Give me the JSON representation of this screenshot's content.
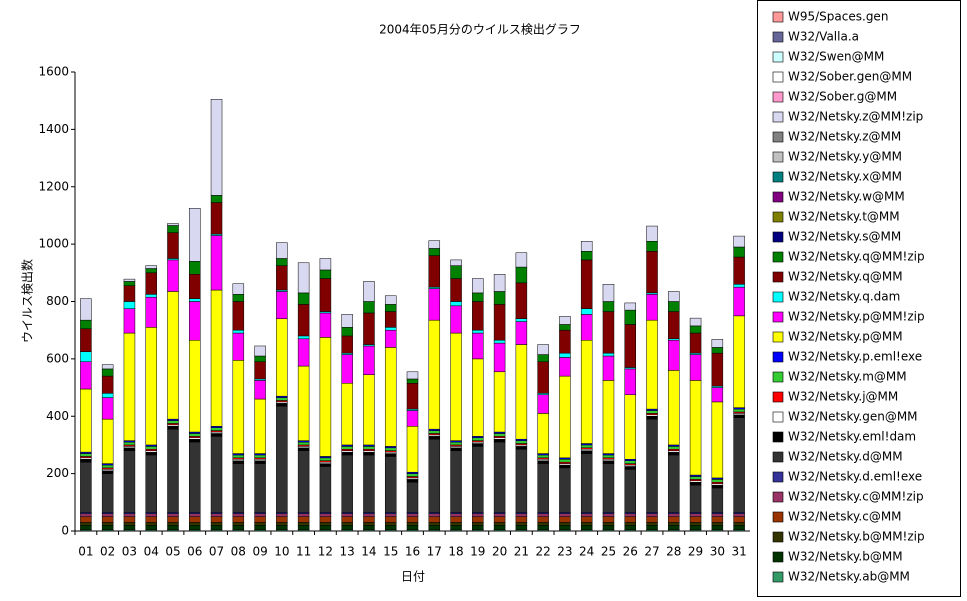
{
  "chart_data": {
    "type": "stacked_bar",
    "title": "2004年05月分のウイルス検出グラフ",
    "y_label": "ウイルス検出数",
    "x_label": "日付",
    "categories": [
      "01",
      "02",
      "03",
      "04",
      "05",
      "06",
      "07",
      "08",
      "09",
      "10",
      "11",
      "12",
      "13",
      "14",
      "15",
      "16",
      "17",
      "18",
      "19",
      "20",
      "21",
      "22",
      "23",
      "24",
      "25",
      "26",
      "27",
      "28",
      "29",
      "30",
      "31"
    ],
    "ylim": [
      0,
      1600
    ],
    "yticks": [
      0,
      200,
      400,
      600,
      800,
      1000,
      1200,
      1400,
      1600
    ],
    "series": [
      {
        "name": "W32/Netsky.ab@MM",
        "color": "#339966",
        "values": [
          5,
          5,
          5,
          5,
          5,
          5,
          5,
          5,
          5,
          5,
          5,
          5,
          5,
          5,
          5,
          5,
          5,
          5,
          5,
          5,
          5,
          5,
          5,
          5,
          5,
          5,
          5,
          5,
          5,
          5,
          5
        ]
      },
      {
        "name": "W32/Netsky.b@MM",
        "color": "#003300",
        "values": [
          15,
          15,
          15,
          15,
          15,
          15,
          15,
          15,
          15,
          15,
          15,
          15,
          15,
          15,
          15,
          15,
          15,
          15,
          15,
          15,
          15,
          15,
          15,
          15,
          15,
          15,
          15,
          15,
          15,
          15,
          15
        ]
      },
      {
        "name": "W32/Netsky.b@MM!zip",
        "color": "#333300",
        "values": [
          10,
          10,
          10,
          10,
          10,
          10,
          10,
          10,
          10,
          10,
          10,
          10,
          10,
          10,
          10,
          10,
          10,
          10,
          10,
          10,
          10,
          10,
          10,
          10,
          10,
          10,
          10,
          10,
          10,
          10,
          10
        ]
      },
      {
        "name": "W32/Netsky.c@MM",
        "color": "#993300",
        "values": [
          20,
          20,
          20,
          20,
          20,
          20,
          20,
          20,
          20,
          20,
          20,
          20,
          20,
          20,
          20,
          20,
          20,
          20,
          20,
          20,
          20,
          20,
          20,
          20,
          20,
          20,
          20,
          20,
          20,
          20,
          20
        ]
      },
      {
        "name": "W32/Netsky.c@MM!zip",
        "color": "#993366",
        "values": [
          10,
          10,
          10,
          10,
          10,
          10,
          10,
          10,
          10,
          10,
          10,
          10,
          10,
          10,
          10,
          10,
          10,
          10,
          10,
          10,
          10,
          10,
          10,
          10,
          10,
          10,
          10,
          10,
          10,
          10,
          10
        ]
      },
      {
        "name": "W32/Netsky.d.eml!exe",
        "color": "#333399",
        "values": [
          5,
          5,
          5,
          5,
          5,
          5,
          5,
          5,
          5,
          5,
          5,
          5,
          5,
          5,
          5,
          5,
          5,
          5,
          5,
          5,
          5,
          5,
          5,
          5,
          5,
          5,
          5,
          5,
          5,
          5,
          5
        ]
      },
      {
        "name": "W32/Netsky.d@MM",
        "color": "#333333",
        "values": [
          175,
          135,
          215,
          200,
          290,
          245,
          265,
          170,
          170,
          370,
          215,
          160,
          200,
          200,
          195,
          105,
          255,
          215,
          230,
          245,
          220,
          170,
          155,
          205,
          170,
          150,
          325,
          200,
          95,
          85,
          330
        ]
      },
      {
        "name": "W32/Netsky.eml!dam",
        "color": "#000000",
        "values": [
          10,
          10,
          10,
          10,
          10,
          10,
          10,
          10,
          10,
          10,
          10,
          10,
          10,
          10,
          10,
          10,
          10,
          10,
          10,
          10,
          10,
          10,
          10,
          10,
          10,
          10,
          10,
          10,
          10,
          10,
          10
        ]
      },
      {
        "name": "W32/Netsky.gen@MM",
        "color": "#ffffff",
        "values": [
          5,
          5,
          5,
          5,
          5,
          5,
          5,
          5,
          5,
          5,
          5,
          5,
          5,
          5,
          5,
          5,
          5,
          5,
          5,
          5,
          5,
          5,
          5,
          5,
          5,
          5,
          5,
          5,
          5,
          5,
          5
        ]
      },
      {
        "name": "W32/Netsky.j@MM",
        "color": "#ff0000",
        "values": [
          5,
          5,
          5,
          5,
          5,
          5,
          5,
          5,
          5,
          5,
          5,
          5,
          5,
          5,
          5,
          5,
          5,
          5,
          5,
          5,
          5,
          5,
          5,
          5,
          5,
          5,
          5,
          5,
          5,
          5,
          5
        ]
      },
      {
        "name": "W32/Netsky.m@MM",
        "color": "#33cc33",
        "values": [
          10,
          10,
          10,
          10,
          10,
          10,
          10,
          10,
          10,
          10,
          10,
          10,
          10,
          10,
          10,
          10,
          10,
          10,
          10,
          10,
          10,
          10,
          10,
          10,
          10,
          10,
          10,
          10,
          10,
          10,
          10
        ]
      },
      {
        "name": "W32/Netsky.p.eml!exe",
        "color": "#0000ff",
        "values": [
          5,
          5,
          5,
          5,
          5,
          5,
          5,
          5,
          5,
          5,
          5,
          5,
          5,
          5,
          5,
          5,
          5,
          5,
          5,
          5,
          5,
          5,
          5,
          5,
          5,
          5,
          5,
          5,
          5,
          5,
          5
        ]
      },
      {
        "name": "W32/Netsky.p@MM",
        "color": "#ffff00",
        "values": [
          220,
          155,
          375,
          410,
          445,
          320,
          475,
          325,
          190,
          270,
          260,
          415,
          215,
          245,
          345,
          160,
          380,
          375,
          270,
          210,
          330,
          140,
          285,
          360,
          255,
          225,
          310,
          260,
          330,
          265,
          320
        ]
      },
      {
        "name": "W32/Netsky.p@MM!zip",
        "color": "#ff00ff",
        "values": [
          95,
          75,
          85,
          105,
          110,
          135,
          190,
          95,
          65,
          95,
          95,
          85,
          100,
          100,
          60,
          55,
          110,
          95,
          90,
          100,
          80,
          65,
          65,
          90,
          85,
          90,
          90,
          105,
          90,
          50,
          100
        ]
      },
      {
        "name": "W32/Netsky.q.dam",
        "color": "#00ffff",
        "values": [
          35,
          15,
          25,
          10,
          5,
          10,
          5,
          10,
          5,
          5,
          10,
          5,
          5,
          5,
          10,
          5,
          5,
          15,
          10,
          10,
          10,
          5,
          15,
          20,
          10,
          5,
          5,
          5,
          5,
          5,
          10
        ]
      },
      {
        "name": "W32/Netsky.q@MM",
        "color": "#800000",
        "values": [
          80,
          60,
          55,
          75,
          90,
          85,
          110,
          100,
          60,
          85,
          110,
          115,
          60,
          110,
          55,
          90,
          110,
          80,
          100,
          125,
          125,
          110,
          80,
          170,
          145,
          150,
          145,
          95,
          70,
          115,
          95
        ]
      },
      {
        "name": "W32/Netsky.q@MM!zip",
        "color": "#008000",
        "values": [
          30,
          25,
          15,
          15,
          25,
          45,
          25,
          25,
          20,
          25,
          40,
          30,
          30,
          40,
          25,
          15,
          25,
          45,
          30,
          45,
          55,
          25,
          20,
          30,
          35,
          50,
          35,
          35,
          25,
          20,
          35
        ]
      },
      {
        "name": "W32/Netsky.s@MM",
        "color": "#000080",
        "values": [
          0,
          0,
          0,
          0,
          0,
          0,
          0,
          0,
          0,
          0,
          0,
          0,
          0,
          0,
          0,
          0,
          0,
          0,
          0,
          0,
          0,
          0,
          0,
          0,
          0,
          0,
          0,
          0,
          0,
          0,
          0
        ]
      },
      {
        "name": "W32/Netsky.t@MM",
        "color": "#808000",
        "values": [
          0,
          0,
          0,
          0,
          0,
          0,
          0,
          0,
          0,
          0,
          0,
          0,
          0,
          0,
          0,
          0,
          0,
          0,
          0,
          0,
          0,
          0,
          0,
          0,
          0,
          0,
          0,
          0,
          0,
          0,
          0
        ]
      },
      {
        "name": "W32/Netsky.w@MM",
        "color": "#800080",
        "values": [
          0,
          0,
          0,
          0,
          0,
          0,
          0,
          0,
          0,
          0,
          0,
          0,
          0,
          0,
          0,
          0,
          0,
          0,
          0,
          0,
          0,
          0,
          0,
          0,
          0,
          0,
          0,
          0,
          0,
          0,
          0
        ]
      },
      {
        "name": "W32/Netsky.x@MM",
        "color": "#008080",
        "values": [
          0,
          0,
          0,
          0,
          0,
          0,
          0,
          0,
          0,
          0,
          0,
          0,
          0,
          0,
          0,
          0,
          0,
          0,
          0,
          0,
          0,
          0,
          0,
          0,
          0,
          0,
          0,
          0,
          0,
          0,
          0
        ]
      },
      {
        "name": "W32/Netsky.y@MM",
        "color": "#c0c0c0",
        "values": [
          0,
          0,
          0,
          0,
          0,
          0,
          0,
          0,
          0,
          0,
          0,
          0,
          0,
          0,
          0,
          0,
          0,
          0,
          0,
          0,
          0,
          0,
          0,
          0,
          0,
          0,
          0,
          0,
          0,
          0,
          0
        ]
      },
      {
        "name": "W32/Netsky.z@MM",
        "color": "#808080",
        "values": [
          0,
          0,
          0,
          0,
          0,
          0,
          0,
          0,
          0,
          0,
          0,
          0,
          0,
          0,
          0,
          0,
          0,
          0,
          0,
          0,
          0,
          0,
          0,
          0,
          0,
          0,
          0,
          0,
          0,
          0,
          0
        ]
      },
      {
        "name": "W32/Netsky.z@MM!zip",
        "color": "#d8d8f0",
        "values": [
          75,
          15,
          8,
          10,
          7,
          185,
          335,
          37,
          35,
          55,
          105,
          40,
          45,
          70,
          30,
          25,
          27,
          20,
          50,
          60,
          50,
          35,
          28,
          35,
          60,
          25,
          53,
          35,
          27,
          28,
          38
        ]
      },
      {
        "name": "W32/Sober.g@MM",
        "color": "#ff99cc",
        "values": [
          0,
          0,
          0,
          0,
          0,
          0,
          0,
          0,
          0,
          0,
          0,
          0,
          0,
          0,
          0,
          0,
          0,
          0,
          0,
          0,
          0,
          0,
          0,
          0,
          0,
          0,
          0,
          0,
          0,
          0,
          0
        ]
      },
      {
        "name": "W32/Sober.gen@MM",
        "color": "#ffffff",
        "values": [
          0,
          0,
          0,
          0,
          0,
          0,
          0,
          0,
          0,
          0,
          0,
          0,
          0,
          0,
          0,
          0,
          0,
          0,
          0,
          0,
          0,
          0,
          0,
          0,
          0,
          0,
          0,
          0,
          0,
          0,
          0
        ]
      },
      {
        "name": "W32/Swen@MM",
        "color": "#ccffff",
        "values": [
          0,
          0,
          0,
          0,
          0,
          0,
          0,
          0,
          0,
          0,
          0,
          0,
          0,
          0,
          0,
          0,
          0,
          0,
          0,
          0,
          0,
          0,
          0,
          0,
          0,
          0,
          0,
          0,
          0,
          0,
          0
        ]
      },
      {
        "name": "W32/Valla.a",
        "color": "#666699",
        "values": [
          0,
          0,
          0,
          0,
          0,
          0,
          0,
          0,
          0,
          0,
          0,
          0,
          0,
          0,
          0,
          0,
          0,
          0,
          0,
          0,
          0,
          0,
          0,
          0,
          0,
          0,
          0,
          0,
          0,
          0,
          0
        ]
      },
      {
        "name": "W95/Spaces.gen",
        "color": "#ff9999",
        "values": [
          0,
          0,
          0,
          0,
          0,
          0,
          0,
          0,
          0,
          0,
          0,
          0,
          0,
          0,
          0,
          0,
          0,
          0,
          0,
          0,
          0,
          0,
          0,
          0,
          0,
          0,
          0,
          0,
          0,
          0,
          0
        ]
      }
    ]
  }
}
